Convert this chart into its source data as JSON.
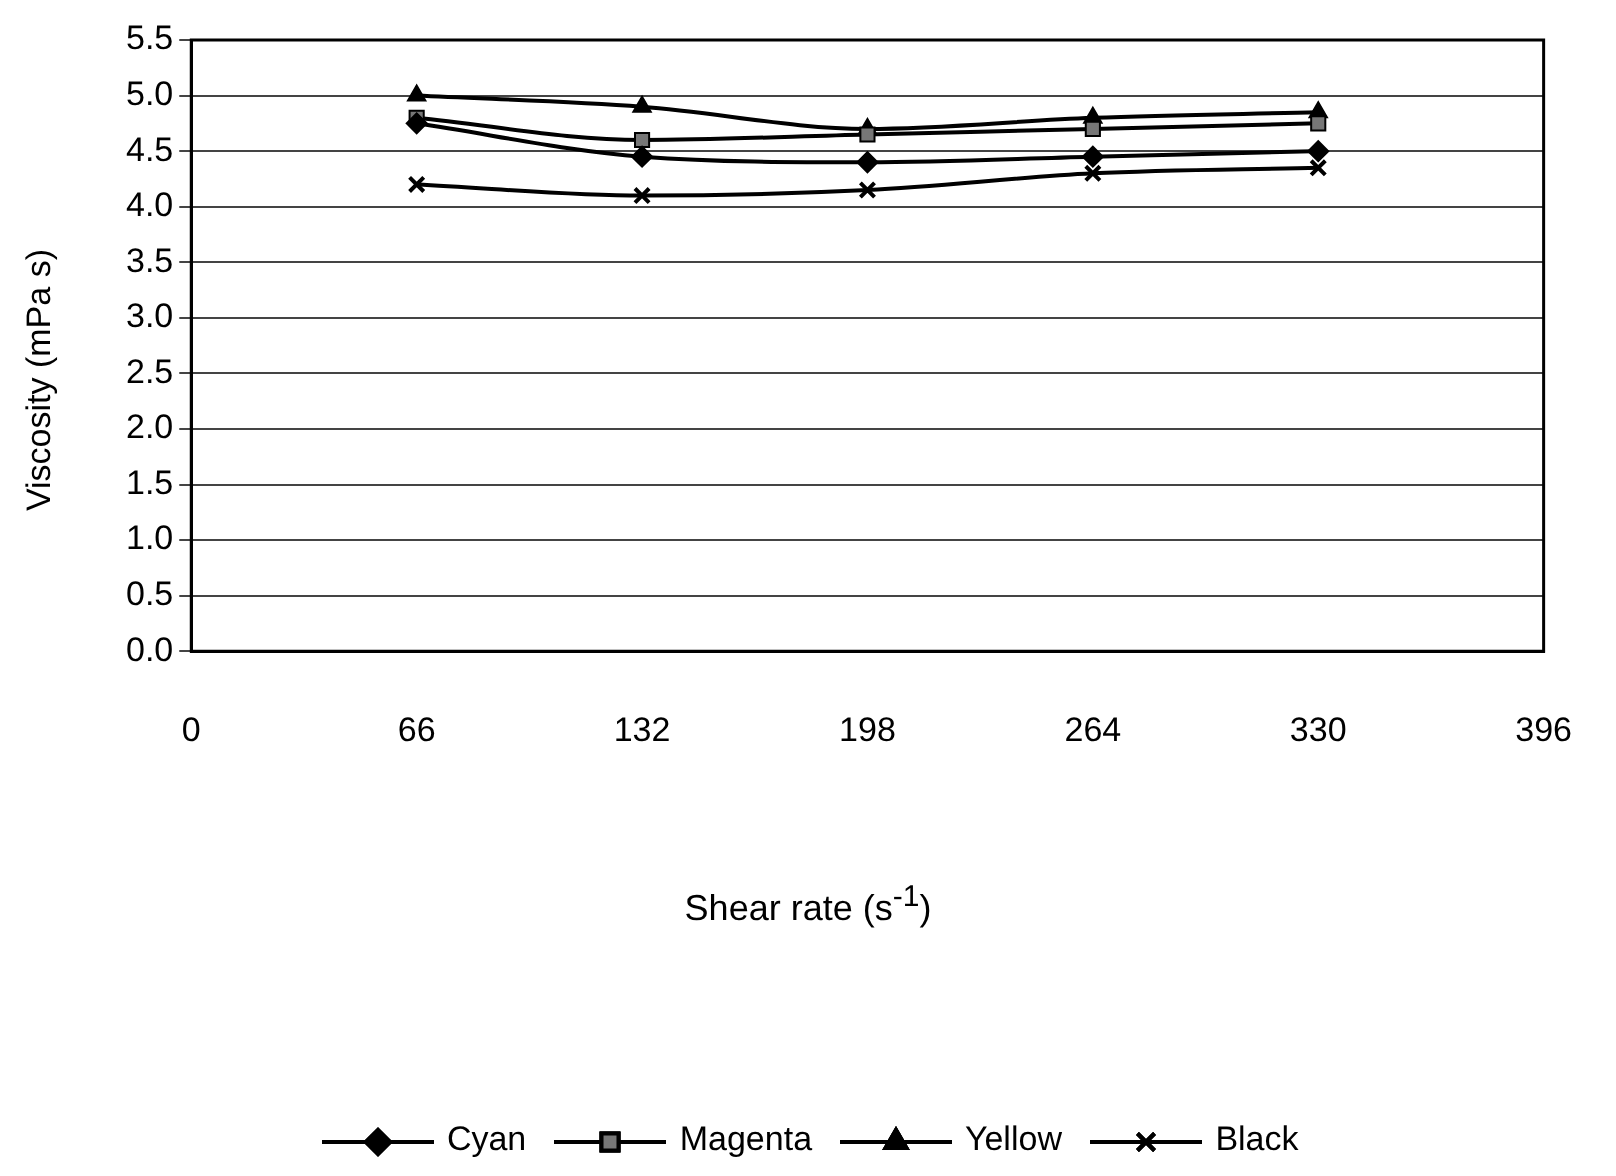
{
  "chart_data": {
    "type": "line",
    "xlabel": "Shear rate (s$^{-1}$)",
    "ylabel": "Viscosity (mPa s)",
    "x": [
      66,
      132,
      198,
      264,
      330
    ],
    "series": [
      {
        "name": "Cyan",
        "color": "#000000",
        "marker": "diamond",
        "values": [
          4.75,
          4.45,
          4.4,
          4.45,
          4.5
        ]
      },
      {
        "name": "Magenta",
        "color": "#000000",
        "marker": "square",
        "values": [
          4.8,
          4.6,
          4.65,
          4.7,
          4.75
        ]
      },
      {
        "name": "Yellow",
        "color": "#000000",
        "marker": "triangle",
        "values": [
          5.0,
          4.9,
          4.7,
          4.8,
          4.85
        ]
      },
      {
        "name": "Black",
        "color": "#000000",
        "marker": "cross",
        "values": [
          4.2,
          4.1,
          4.15,
          4.3,
          4.35
        ]
      }
    ],
    "xlim": [
      0,
      396
    ],
    "xticks": [
      0,
      66,
      132,
      198,
      264,
      330,
      396
    ],
    "ylim": [
      0,
      5.5
    ],
    "yticks": [
      {
        "value": 0,
        "label": "0.0"
      },
      {
        "value": 0.5,
        "label": "0.5"
      },
      {
        "value": 1,
        "label": "1.0"
      },
      {
        "value": 1.5,
        "label": "1.5"
      },
      {
        "value": 2,
        "label": "2.0"
      },
      {
        "value": 2.5,
        "label": "2.5"
      },
      {
        "value": 3,
        "label": "3.0"
      },
      {
        "value": 3.5,
        "label": "3.5"
      },
      {
        "value": 4,
        "label": "4.0"
      },
      {
        "value": 4.5,
        "label": "4.5"
      },
      {
        "value": 5,
        "label": "5.0"
      },
      {
        "value": 5.5,
        "label": "5.5"
      }
    ],
    "grid": "y",
    "legend": "bottom",
    "line_style": "solid"
  }
}
